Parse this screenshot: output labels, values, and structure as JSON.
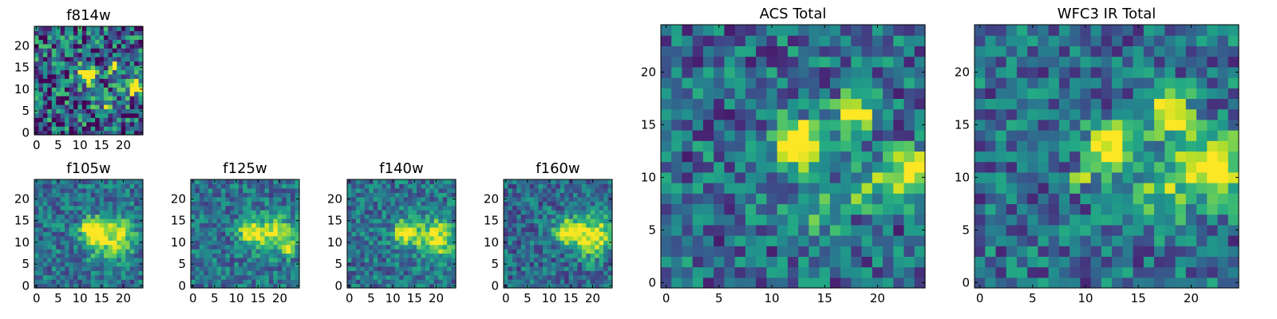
{
  "figure": {
    "colormap": "viridis",
    "background": "#ffffff"
  },
  "chart_data": [
    {
      "type": "heatmap",
      "title": "f814w",
      "grid_size": 25,
      "xticks": [
        "0",
        "5",
        "10",
        "15",
        "20"
      ],
      "yticks": [
        "0",
        "5",
        "10",
        "15",
        "20"
      ],
      "xlim": [
        0,
        24
      ],
      "ylim": [
        0,
        24
      ],
      "seed": 11,
      "noise": 0.42,
      "base": 0.3,
      "sources": [
        {
          "x": 12,
          "y": 13.5,
          "amp": 0.9,
          "sigma": 1.5
        },
        {
          "x": 18,
          "y": 15.5,
          "amp": 0.7,
          "sigma": 1.2
        },
        {
          "x": 23,
          "y": 10.5,
          "amp": 0.75,
          "sigma": 1.4
        },
        {
          "x": 16,
          "y": 7,
          "amp": 0.3,
          "sigma": 2.0
        }
      ]
    },
    {
      "type": "heatmap",
      "title": "f105w",
      "grid_size": 25,
      "xticks": [
        "0",
        "5",
        "10",
        "15",
        "20"
      ],
      "yticks": [
        "0",
        "5",
        "10",
        "15",
        "20"
      ],
      "xlim": [
        0,
        24
      ],
      "ylim": [
        0,
        24
      ],
      "seed": 21,
      "noise": 0.22,
      "base": 0.38,
      "sources": [
        {
          "x": 13,
          "y": 13,
          "amp": 0.8,
          "sigma": 1.8
        },
        {
          "x": 19,
          "y": 12,
          "amp": 0.5,
          "sigma": 2.8
        },
        {
          "x": 15,
          "y": 9,
          "amp": 0.25,
          "sigma": 3.0
        }
      ]
    },
    {
      "type": "heatmap",
      "title": "f125w",
      "grid_size": 25,
      "xticks": [
        "0",
        "5",
        "10",
        "15",
        "20"
      ],
      "yticks": [
        "0",
        "5",
        "10",
        "15",
        "20"
      ],
      "xlim": [
        0,
        24
      ],
      "ylim": [
        0,
        24
      ],
      "seed": 31,
      "noise": 0.22,
      "base": 0.38,
      "sources": [
        {
          "x": 13,
          "y": 12.5,
          "amp": 0.65,
          "sigma": 1.8
        },
        {
          "x": 19,
          "y": 12,
          "amp": 0.55,
          "sigma": 3.0
        },
        {
          "x": 22,
          "y": 8.5,
          "amp": 0.35,
          "sigma": 1.2
        }
      ]
    },
    {
      "type": "heatmap",
      "title": "f140w",
      "grid_size": 25,
      "xticks": [
        "0",
        "5",
        "10",
        "15",
        "20"
      ],
      "yticks": [
        "0",
        "5",
        "10",
        "15",
        "20"
      ],
      "xlim": [
        0,
        24
      ],
      "ylim": [
        0,
        24
      ],
      "seed": 41,
      "noise": 0.22,
      "base": 0.38,
      "sources": [
        {
          "x": 13,
          "y": 12.5,
          "amp": 0.65,
          "sigma": 2.0
        },
        {
          "x": 20,
          "y": 11,
          "amp": 0.6,
          "sigma": 3.0
        }
      ]
    },
    {
      "type": "heatmap",
      "title": "f160w",
      "grid_size": 25,
      "xticks": [
        "0",
        "5",
        "10",
        "15",
        "20"
      ],
      "yticks": [
        "0",
        "5",
        "10",
        "15",
        "20"
      ],
      "xlim": [
        0,
        24
      ],
      "ylim": [
        0,
        24
      ],
      "seed": 51,
      "noise": 0.22,
      "base": 0.35,
      "sources": [
        {
          "x": 14,
          "y": 12.5,
          "amp": 0.65,
          "sigma": 2.0
        },
        {
          "x": 20,
          "y": 11.5,
          "amp": 0.65,
          "sigma": 3.2
        }
      ]
    },
    {
      "type": "heatmap",
      "title": "ACS Total",
      "grid_size": 25,
      "xticks": [
        "0",
        "5",
        "10",
        "15",
        "20"
      ],
      "yticks": [
        "0",
        "5",
        "10",
        "15",
        "20"
      ],
      "xlim": [
        0,
        24
      ],
      "ylim": [
        0,
        24
      ],
      "seed": 61,
      "noise": 0.28,
      "base": 0.35,
      "sources": [
        {
          "x": 12.5,
          "y": 13,
          "amp": 0.95,
          "sigma": 1.6
        },
        {
          "x": 18,
          "y": 16,
          "amp": 0.75,
          "sigma": 1.3
        },
        {
          "x": 23,
          "y": 10.5,
          "amp": 0.8,
          "sigma": 1.4
        },
        {
          "x": 19,
          "y": 9,
          "amp": 0.35,
          "sigma": 1.5
        },
        {
          "x": 14,
          "y": 7,
          "amp": 0.25,
          "sigma": 1.8
        }
      ]
    },
    {
      "type": "heatmap",
      "title": "WFC3 IR Total",
      "grid_size": 25,
      "xticks": [
        "0",
        "5",
        "10",
        "15",
        "20"
      ],
      "yticks": [
        "0",
        "5",
        "10",
        "15",
        "20"
      ],
      "xlim": [
        0,
        24
      ],
      "ylim": [
        0,
        24
      ],
      "seed": 71,
      "noise": 0.26,
      "base": 0.36,
      "sources": [
        {
          "x": 12.5,
          "y": 13,
          "amp": 0.8,
          "sigma": 1.5
        },
        {
          "x": 18,
          "y": 16,
          "amp": 0.75,
          "sigma": 1.4
        },
        {
          "x": 22,
          "y": 11,
          "amp": 0.75,
          "sigma": 2.2
        },
        {
          "x": 9.5,
          "y": 10,
          "amp": 0.7,
          "sigma": 0.6
        },
        {
          "x": 17,
          "y": 9,
          "amp": 0.3,
          "sigma": 2.5
        }
      ]
    }
  ]
}
